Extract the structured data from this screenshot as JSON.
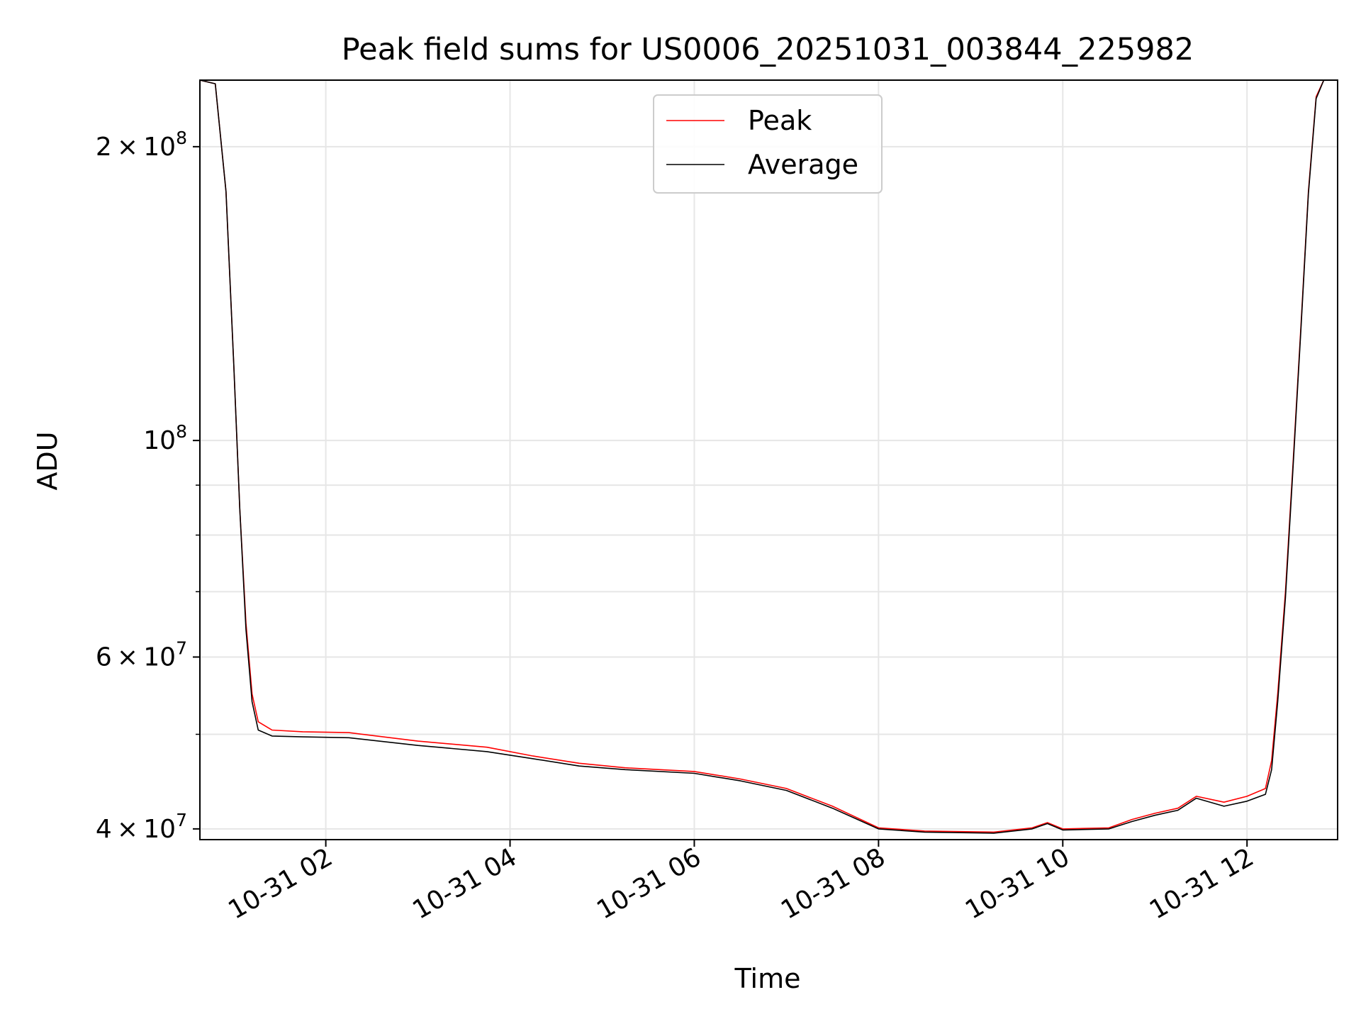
{
  "chart_data": {
    "type": "line",
    "title": "Peak field sums for US0006_20251031_003844_225982",
    "xlabel": "Time",
    "ylabel": "ADU",
    "yscale": "log",
    "ylim": [
      39000000,
      234000000
    ],
    "xlim": [
      "2025-10-31T00:38",
      "2025-10-31T12:59"
    ],
    "grid": true,
    "legend_position": "upper center",
    "x_ticks": [
      {
        "x": "2025-10-31T02:00",
        "label": "10-31 02"
      },
      {
        "x": "2025-10-31T04:00",
        "label": "10-31 04"
      },
      {
        "x": "2025-10-31T06:00",
        "label": "10-31 06"
      },
      {
        "x": "2025-10-31T08:00",
        "label": "10-31 08"
      },
      {
        "x": "2025-10-31T10:00",
        "label": "10-31 10"
      },
      {
        "x": "2025-10-31T12:00",
        "label": "10-31 12"
      }
    ],
    "y_ticks": [
      {
        "y": 40000000,
        "mantissa": "4",
        "exp": "7"
      },
      {
        "y": 60000000,
        "mantissa": "6",
        "exp": "7"
      },
      {
        "y": 100000000,
        "mantissa": "",
        "exp": "8"
      },
      {
        "y": 200000000,
        "mantissa": "2",
        "exp": "8"
      }
    ],
    "y_minor_grid": [
      50000000,
      70000000,
      80000000,
      90000000
    ],
    "series": [
      {
        "name": "Peak",
        "color": "#ff0000",
        "points": [
          [
            "2025-10-31T00:38",
            234000000
          ],
          [
            "2025-10-31T00:48",
            232000000
          ],
          [
            "2025-10-31T00:55",
            180000000
          ],
          [
            "2025-10-31T01:00",
            120000000
          ],
          [
            "2025-10-31T01:04",
            85000000
          ],
          [
            "2025-10-31T01:08",
            65000000
          ],
          [
            "2025-10-31T01:12",
            55000000
          ],
          [
            "2025-10-31T01:16",
            51500000
          ],
          [
            "2025-10-31T01:25",
            50500000
          ],
          [
            "2025-10-31T01:45",
            50300000
          ],
          [
            "2025-10-31T02:15",
            50200000
          ],
          [
            "2025-10-31T03:00",
            49200000
          ],
          [
            "2025-10-31T03:45",
            48500000
          ],
          [
            "2025-10-31T04:15",
            47500000
          ],
          [
            "2025-10-31T04:45",
            46700000
          ],
          [
            "2025-10-31T05:15",
            46200000
          ],
          [
            "2025-10-31T06:00",
            45800000
          ],
          [
            "2025-10-31T06:30",
            45000000
          ],
          [
            "2025-10-31T07:00",
            44000000
          ],
          [
            "2025-10-31T07:30",
            42200000
          ],
          [
            "2025-10-31T08:00",
            40100000
          ],
          [
            "2025-10-31T08:30",
            39800000
          ],
          [
            "2025-10-31T09:15",
            39700000
          ],
          [
            "2025-10-31T09:40",
            40100000
          ],
          [
            "2025-10-31T09:50",
            40600000
          ],
          [
            "2025-10-31T10:00",
            40000000
          ],
          [
            "2025-10-31T10:30",
            40100000
          ],
          [
            "2025-10-31T10:45",
            40900000
          ],
          [
            "2025-10-31T11:00",
            41500000
          ],
          [
            "2025-10-31T11:15",
            42000000
          ],
          [
            "2025-10-31T11:27",
            43200000
          ],
          [
            "2025-10-31T11:45",
            42600000
          ],
          [
            "2025-10-31T12:00",
            43200000
          ],
          [
            "2025-10-31T12:12",
            44000000
          ],
          [
            "2025-10-31T12:16",
            47000000
          ],
          [
            "2025-10-31T12:20",
            55000000
          ],
          [
            "2025-10-31T12:25",
            70000000
          ],
          [
            "2025-10-31T12:30",
            95000000
          ],
          [
            "2025-10-31T12:35",
            130000000
          ],
          [
            "2025-10-31T12:40",
            180000000
          ],
          [
            "2025-10-31T12:45",
            225000000
          ],
          [
            "2025-10-31T12:50",
            234000000
          ],
          [
            "2025-10-31T12:59",
            234000000
          ]
        ]
      },
      {
        "name": "Average",
        "color": "#000000",
        "points": [
          [
            "2025-10-31T00:38",
            234000000
          ],
          [
            "2025-10-31T00:48",
            232000000
          ],
          [
            "2025-10-31T00:55",
            180000000
          ],
          [
            "2025-10-31T01:00",
            120000000
          ],
          [
            "2025-10-31T01:04",
            85000000
          ],
          [
            "2025-10-31T01:08",
            64000000
          ],
          [
            "2025-10-31T01:12",
            54000000
          ],
          [
            "2025-10-31T01:16",
            50500000
          ],
          [
            "2025-10-31T01:25",
            49800000
          ],
          [
            "2025-10-31T01:45",
            49700000
          ],
          [
            "2025-10-31T02:15",
            49600000
          ],
          [
            "2025-10-31T03:00",
            48700000
          ],
          [
            "2025-10-31T03:45",
            48000000
          ],
          [
            "2025-10-31T04:15",
            47200000
          ],
          [
            "2025-10-31T04:45",
            46400000
          ],
          [
            "2025-10-31T05:15",
            46000000
          ],
          [
            "2025-10-31T06:00",
            45600000
          ],
          [
            "2025-10-31T06:30",
            44800000
          ],
          [
            "2025-10-31T07:00",
            43800000
          ],
          [
            "2025-10-31T07:30",
            42000000
          ],
          [
            "2025-10-31T08:00",
            40000000
          ],
          [
            "2025-10-31T08:30",
            39700000
          ],
          [
            "2025-10-31T09:15",
            39600000
          ],
          [
            "2025-10-31T09:40",
            40000000
          ],
          [
            "2025-10-31T09:50",
            40500000
          ],
          [
            "2025-10-31T10:00",
            39900000
          ],
          [
            "2025-10-31T10:30",
            40000000
          ],
          [
            "2025-10-31T10:45",
            40700000
          ],
          [
            "2025-10-31T11:00",
            41300000
          ],
          [
            "2025-10-31T11:15",
            41800000
          ],
          [
            "2025-10-31T11:27",
            43000000
          ],
          [
            "2025-10-31T11:45",
            42200000
          ],
          [
            "2025-10-31T12:00",
            42700000
          ],
          [
            "2025-10-31T12:12",
            43400000
          ],
          [
            "2025-10-31T12:16",
            46000000
          ],
          [
            "2025-10-31T12:20",
            54000000
          ],
          [
            "2025-10-31T12:25",
            69000000
          ],
          [
            "2025-10-31T12:30",
            94000000
          ],
          [
            "2025-10-31T12:35",
            129000000
          ],
          [
            "2025-10-31T12:40",
            179000000
          ],
          [
            "2025-10-31T12:45",
            224000000
          ],
          [
            "2025-10-31T12:50",
            234000000
          ],
          [
            "2025-10-31T12:59",
            234000000
          ]
        ]
      }
    ]
  }
}
